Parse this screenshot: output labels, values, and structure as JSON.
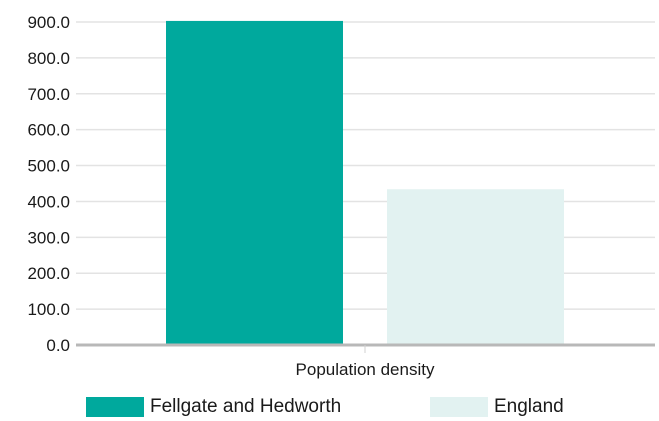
{
  "chart_data": {
    "type": "bar",
    "categories": [
      "Population density"
    ],
    "series": [
      {
        "name": "Fellgate and Hedworth",
        "values": [
          903
        ],
        "color": "#00a99d"
      },
      {
        "name": "England",
        "values": [
          434
        ],
        "color": "#e2f2f1"
      }
    ],
    "yticks": [
      "0.0",
      "100.0",
      "200.0",
      "300.0",
      "400.0",
      "500.0",
      "600.0",
      "700.0",
      "800.0",
      "900.0"
    ],
    "ylim": [
      0,
      900
    ],
    "grid": true,
    "legend_position": "bottom"
  }
}
